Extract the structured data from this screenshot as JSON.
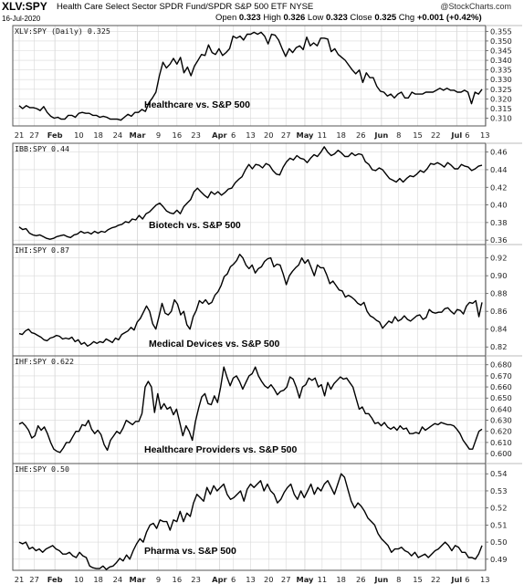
{
  "header": {
    "symbol": "XLV:SPY",
    "name": "Health Care Select Sector SPDR Fund/SPDR S&P 500 ETF",
    "exchange": "NYSE",
    "date": "16-Jul-2020",
    "source": "@StockCharts.com",
    "ohlc": {
      "open_label": "Open",
      "open": "0.323",
      "high_label": "High",
      "high": "0.326",
      "low_label": "Low",
      "low": "0.323",
      "close_label": "Close",
      "close": "0.325",
      "chg_label": "Chg",
      "chg": "+0.001 (+0.42%)"
    }
  },
  "colors": {
    "line": "#000000",
    "grid": "#d9d9d9",
    "border": "#555555",
    "sep": "#bbbbbb"
  },
  "chart_data": [
    {
      "type": "line",
      "tag": "XLV:SPY (Daily) 0.325",
      "caption": "Healthcare vs. S&P 500",
      "ylim": [
        0.306,
        0.358
      ],
      "yticks": [
        "0.355",
        "0.350",
        "0.345",
        "0.340",
        "0.335",
        "0.330",
        "0.325",
        "0.320",
        "0.315",
        "0.310"
      ],
      "values": [
        0.3165,
        0.315,
        0.3165,
        0.3155,
        0.3155,
        0.315,
        0.314,
        0.316,
        0.313,
        0.311,
        0.31,
        0.3105,
        0.3095,
        0.3095,
        0.3115,
        0.3115,
        0.3105,
        0.3125,
        0.313,
        0.3125,
        0.3125,
        0.3115,
        0.3115,
        0.3105,
        0.311,
        0.3105,
        0.3095,
        0.3095,
        0.3095,
        0.309,
        0.3105,
        0.312,
        0.311,
        0.313,
        0.313,
        0.3145,
        0.3135,
        0.318,
        0.3205,
        0.3235,
        0.332,
        0.339,
        0.336,
        0.338,
        0.341,
        0.338,
        0.3415,
        0.3335,
        0.3365,
        0.332,
        0.337,
        0.34,
        0.343,
        0.3425,
        0.348,
        0.344,
        0.343,
        0.346,
        0.3425,
        0.344,
        0.346,
        0.3525,
        0.3515,
        0.3525,
        0.3505,
        0.3535,
        0.3535,
        0.3545,
        0.3535,
        0.3545,
        0.3525,
        0.3485,
        0.3535,
        0.353,
        0.3505,
        0.346,
        0.342,
        0.346,
        0.344,
        0.3465,
        0.3475,
        0.3455,
        0.352,
        0.3475,
        0.349,
        0.3475,
        0.3515,
        0.3515,
        0.351,
        0.3445,
        0.346,
        0.343,
        0.3415,
        0.34,
        0.3375,
        0.335,
        0.333,
        0.335,
        0.3285,
        0.3335,
        0.331,
        0.331,
        0.3265,
        0.324,
        0.3235,
        0.3215,
        0.3225,
        0.3205,
        0.3225,
        0.3235,
        0.3205,
        0.3205,
        0.3235,
        0.3225,
        0.3225,
        0.3225,
        0.3235,
        0.3235,
        0.3235,
        0.3245,
        0.3255,
        0.3245,
        0.3255,
        0.3245,
        0.3245,
        0.3235,
        0.3235,
        0.3245,
        0.3235,
        0.3175,
        0.3235,
        0.3225,
        0.325
      ]
    },
    {
      "type": "line",
      "tag": "IBB:SPY 0.44",
      "caption": "Biotech vs. S&P 500",
      "ylim": [
        0.355,
        0.47
      ],
      "yticks": [
        "0.46",
        "0.44",
        "0.42",
        "0.40",
        "0.38",
        "0.36"
      ],
      "values": [
        0.375,
        0.372,
        0.373,
        0.368,
        0.366,
        0.365,
        0.366,
        0.364,
        0.362,
        0.361,
        0.362,
        0.364,
        0.365,
        0.366,
        0.364,
        0.363,
        0.366,
        0.367,
        0.37,
        0.368,
        0.369,
        0.367,
        0.37,
        0.368,
        0.37,
        0.369,
        0.372,
        0.374,
        0.375,
        0.377,
        0.378,
        0.381,
        0.38,
        0.384,
        0.383,
        0.388,
        0.384,
        0.39,
        0.392,
        0.396,
        0.4,
        0.402,
        0.398,
        0.393,
        0.391,
        0.39,
        0.394,
        0.39,
        0.398,
        0.402,
        0.406,
        0.415,
        0.419,
        0.415,
        0.411,
        0.408,
        0.415,
        0.412,
        0.415,
        0.411,
        0.414,
        0.418,
        0.419,
        0.425,
        0.429,
        0.432,
        0.44,
        0.446,
        0.441,
        0.446,
        0.445,
        0.442,
        0.447,
        0.445,
        0.439,
        0.435,
        0.434,
        0.443,
        0.449,
        0.453,
        0.451,
        0.456,
        0.453,
        0.452,
        0.448,
        0.453,
        0.457,
        0.455,
        0.46,
        0.466,
        0.46,
        0.456,
        0.458,
        0.462,
        0.459,
        0.455,
        0.455,
        0.459,
        0.456,
        0.458,
        0.457,
        0.449,
        0.446,
        0.44,
        0.439,
        0.442,
        0.44,
        0.435,
        0.43,
        0.428,
        0.426,
        0.43,
        0.426,
        0.43,
        0.433,
        0.432,
        0.435,
        0.439,
        0.437,
        0.441,
        0.447,
        0.446,
        0.448,
        0.446,
        0.443,
        0.448,
        0.445,
        0.441,
        0.441,
        0.446,
        0.444,
        0.443,
        0.439,
        0.441,
        0.444,
        0.445
      ]
    },
    {
      "type": "line",
      "tag": "IHI:SPY 0.87",
      "caption": "Medical Devices vs. S&P 500",
      "ylim": [
        0.81,
        0.935
      ],
      "yticks": [
        "0.92",
        "0.90",
        "0.88",
        "0.86",
        "0.84",
        "0.82"
      ],
      "values": [
        0.835,
        0.834,
        0.838,
        0.84,
        0.836,
        0.835,
        0.833,
        0.831,
        0.828,
        0.827,
        0.83,
        0.831,
        0.833,
        0.832,
        0.829,
        0.83,
        0.829,
        0.831,
        0.826,
        0.828,
        0.823,
        0.825,
        0.821,
        0.823,
        0.826,
        0.824,
        0.826,
        0.825,
        0.829,
        0.827,
        0.825,
        0.83,
        0.828,
        0.834,
        0.836,
        0.838,
        0.842,
        0.839,
        0.848,
        0.852,
        0.859,
        0.866,
        0.86,
        0.846,
        0.84,
        0.854,
        0.869,
        0.858,
        0.856,
        0.86,
        0.873,
        0.868,
        0.856,
        0.86,
        0.845,
        0.84,
        0.854,
        0.861,
        0.872,
        0.869,
        0.873,
        0.868,
        0.87,
        0.878,
        0.882,
        0.889,
        0.899,
        0.902,
        0.91,
        0.913,
        0.917,
        0.924,
        0.92,
        0.912,
        0.908,
        0.912,
        0.903,
        0.908,
        0.91,
        0.916,
        0.919,
        0.92,
        0.91,
        0.913,
        0.912,
        0.902,
        0.89,
        0.9,
        0.905,
        0.909,
        0.912,
        0.92,
        0.914,
        0.918,
        0.909,
        0.9,
        0.912,
        0.909,
        0.909,
        0.901,
        0.891,
        0.894,
        0.889,
        0.884,
        0.883,
        0.876,
        0.878,
        0.876,
        0.873,
        0.869,
        0.867,
        0.87,
        0.86,
        0.855,
        0.853,
        0.85,
        0.848,
        0.841,
        0.845,
        0.849,
        0.847,
        0.854,
        0.849,
        0.851,
        0.855,
        0.851,
        0.849,
        0.852,
        0.855,
        0.856,
        0.851,
        0.853,
        0.862,
        0.859,
        0.858,
        0.859,
        0.859,
        0.863,
        0.864,
        0.86,
        0.857,
        0.862,
        0.861,
        0.857,
        0.866,
        0.87,
        0.869,
        0.872,
        0.854,
        0.87
      ]
    },
    {
      "type": "line",
      "tag": "IHF:SPY 0.622",
      "caption": "Healthcare Providers vs. S&P 500",
      "ylim": [
        0.591,
        0.688
      ],
      "yticks": [
        "0.680",
        "0.670",
        "0.660",
        "0.650",
        "0.640",
        "0.630",
        "0.620",
        "0.610",
        "0.600"
      ],
      "values": [
        0.6265,
        0.628,
        0.625,
        0.621,
        0.614,
        0.616,
        0.625,
        0.621,
        0.624,
        0.618,
        0.61,
        0.604,
        0.602,
        0.601,
        0.605,
        0.61,
        0.61,
        0.615,
        0.62,
        0.62,
        0.626,
        0.625,
        0.63,
        0.622,
        0.618,
        0.621,
        0.617,
        0.608,
        0.603,
        0.612,
        0.616,
        0.62,
        0.618,
        0.623,
        0.63,
        0.628,
        0.626,
        0.629,
        0.629,
        0.636,
        0.66,
        0.665,
        0.66,
        0.637,
        0.654,
        0.64,
        0.645,
        0.64,
        0.642,
        0.635,
        0.64,
        0.628,
        0.616,
        0.625,
        0.62,
        0.612,
        0.629,
        0.641,
        0.651,
        0.654,
        0.645,
        0.644,
        0.652,
        0.646,
        0.66,
        0.678,
        0.669,
        0.661,
        0.668,
        0.67,
        0.665,
        0.658,
        0.664,
        0.67,
        0.672,
        0.678,
        0.67,
        0.665,
        0.661,
        0.659,
        0.662,
        0.658,
        0.653,
        0.656,
        0.657,
        0.66,
        0.669,
        0.667,
        0.66,
        0.65,
        0.66,
        0.662,
        0.668,
        0.666,
        0.668,
        0.66,
        0.662,
        0.652,
        0.664,
        0.658,
        0.663,
        0.666,
        0.669,
        0.667,
        0.668,
        0.664,
        0.66,
        0.65,
        0.64,
        0.642,
        0.636,
        0.636,
        0.632,
        0.627,
        0.628,
        0.625,
        0.628,
        0.624,
        0.622,
        0.624,
        0.621,
        0.625,
        0.622,
        0.623,
        0.618,
        0.618,
        0.619,
        0.618,
        0.624,
        0.621,
        0.623,
        0.625,
        0.627,
        0.626,
        0.628,
        0.627,
        0.626,
        0.626,
        0.625,
        0.622,
        0.618,
        0.612,
        0.608,
        0.604,
        0.604,
        0.612,
        0.62,
        0.622
      ]
    },
    {
      "type": "line",
      "tag": "IHE:SPY 0.50",
      "caption": "Pharma vs. S&P 500",
      "ylim": [
        0.4835,
        0.546
      ],
      "yticks": [
        "0.54",
        "0.53",
        "0.52",
        "0.51",
        "0.50",
        "0.49"
      ],
      "values": [
        0.5,
        0.499,
        0.5,
        0.496,
        0.497,
        0.495,
        0.496,
        0.494,
        0.496,
        0.497,
        0.498,
        0.496,
        0.495,
        0.493,
        0.493,
        0.494,
        0.492,
        0.491,
        0.494,
        0.492,
        0.491,
        0.486,
        0.485,
        0.4845,
        0.4845,
        0.486,
        0.484,
        0.4855,
        0.486,
        0.488,
        0.4905,
        0.489,
        0.4925,
        0.49,
        0.495,
        0.499,
        0.502,
        0.5,
        0.506,
        0.51,
        0.511,
        0.508,
        0.513,
        0.512,
        0.512,
        0.507,
        0.513,
        0.512,
        0.518,
        0.512,
        0.517,
        0.515,
        0.523,
        0.528,
        0.526,
        0.524,
        0.532,
        0.528,
        0.533,
        0.53,
        0.532,
        0.534,
        0.528,
        0.525,
        0.526,
        0.528,
        0.53,
        0.524,
        0.531,
        0.534,
        0.532,
        0.534,
        0.536,
        0.53,
        0.534,
        0.53,
        0.528,
        0.523,
        0.525,
        0.529,
        0.532,
        0.534,
        0.528,
        0.525,
        0.53,
        0.526,
        0.53,
        0.534,
        0.528,
        0.532,
        0.53,
        0.534,
        0.536,
        0.532,
        0.528,
        0.534,
        0.54,
        0.538,
        0.531,
        0.524,
        0.52,
        0.523,
        0.521,
        0.518,
        0.514,
        0.512,
        0.51,
        0.505,
        0.502,
        0.5,
        0.498,
        0.494,
        0.496,
        0.496,
        0.497,
        0.495,
        0.494,
        0.492,
        0.494,
        0.491,
        0.492,
        0.493,
        0.491,
        0.493,
        0.495,
        0.496,
        0.498,
        0.5,
        0.498,
        0.495,
        0.498,
        0.497,
        0.494,
        0.494,
        0.491,
        0.491,
        0.49,
        0.493,
        0.498
      ]
    }
  ],
  "xaxis": {
    "ticks": [
      {
        "label": "21",
        "t": 0.0,
        "strong": false
      },
      {
        "label": "27",
        "t": 0.036,
        "strong": false
      },
      {
        "label": "Feb",
        "t": 0.085,
        "strong": true
      },
      {
        "label": "10",
        "t": 0.142,
        "strong": false
      },
      {
        "label": "18",
        "t": 0.188,
        "strong": false
      },
      {
        "label": "24",
        "t": 0.234,
        "strong": false
      },
      {
        "label": "Mar",
        "t": 0.281,
        "strong": true
      },
      {
        "label": "9",
        "t": 0.331,
        "strong": false
      },
      {
        "label": "16",
        "t": 0.375,
        "strong": false
      },
      {
        "label": "23",
        "t": 0.42,
        "strong": false
      },
      {
        "label": "Apr",
        "t": 0.476,
        "strong": true
      },
      {
        "label": "6",
        "t": 0.509,
        "strong": false
      },
      {
        "label": "13",
        "t": 0.55,
        "strong": false
      },
      {
        "label": "20",
        "t": 0.593,
        "strong": false
      },
      {
        "label": "27",
        "t": 0.634,
        "strong": false
      },
      {
        "label": "May",
        "t": 0.679,
        "strong": true
      },
      {
        "label": "11",
        "t": 0.72,
        "strong": false
      },
      {
        "label": "18",
        "t": 0.765,
        "strong": false
      },
      {
        "label": "26",
        "t": 0.812,
        "strong": false
      },
      {
        "label": "Jun",
        "t": 0.861,
        "strong": true
      },
      {
        "label": "8",
        "t": 0.902,
        "strong": false
      },
      {
        "label": "15",
        "t": 0.947,
        "strong": false
      },
      {
        "label": "22",
        "t": 0.99,
        "strong": false
      },
      {
        "label": "Jul",
        "t": 1.04,
        "strong": true
      },
      {
        "label": "6",
        "t": 1.065,
        "strong": false
      },
      {
        "label": "13",
        "t": 1.107,
        "strong": false
      }
    ]
  }
}
